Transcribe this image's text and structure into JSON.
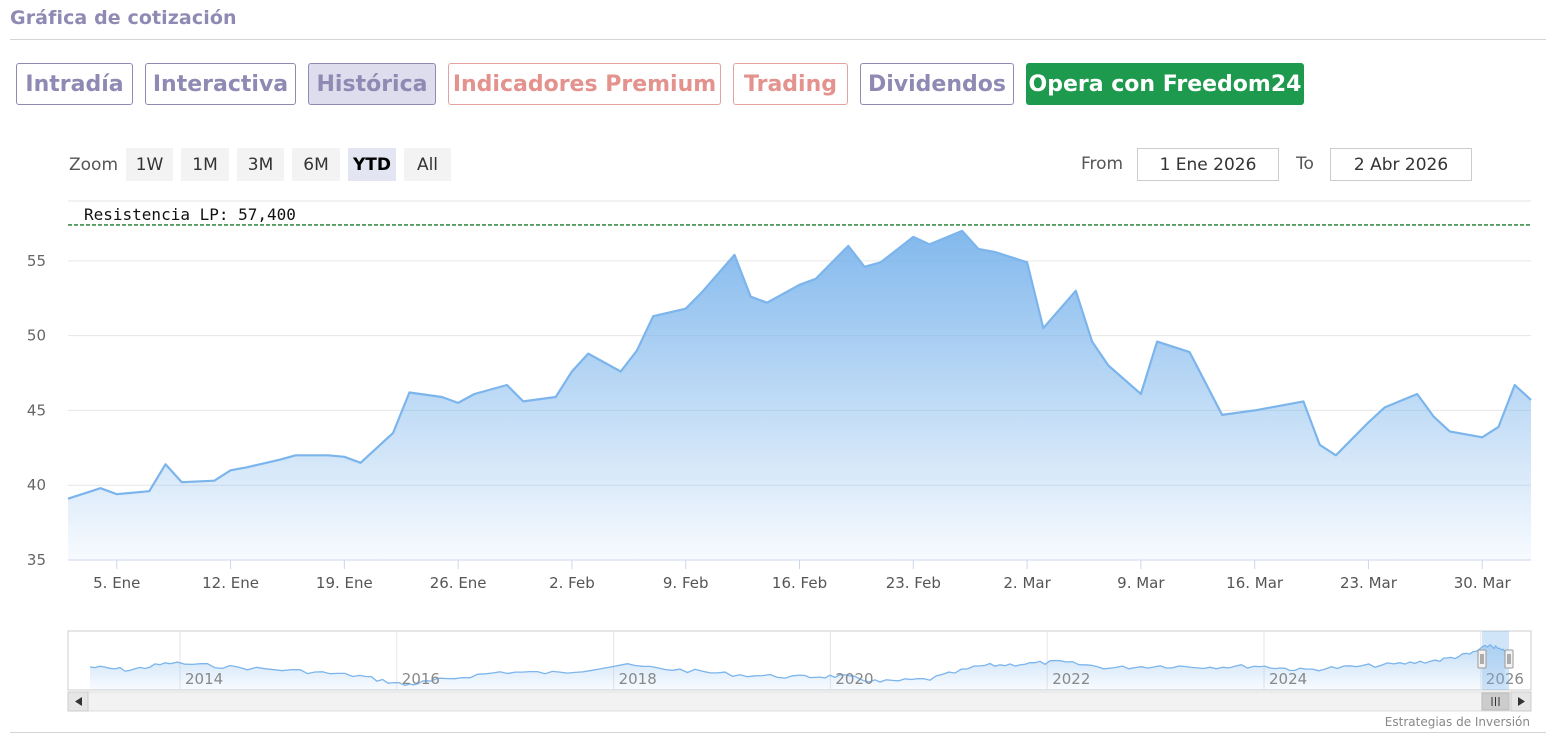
{
  "page": {
    "title": "Gráfica de cotización"
  },
  "tabs": [
    {
      "label": "Intradía"
    },
    {
      "label": "Interactiva"
    },
    {
      "label": "Histórica"
    },
    {
      "label": "Indicadores Premium"
    },
    {
      "label": "Trading"
    },
    {
      "label": "Dividendos"
    },
    {
      "label": "Opera con Freedom24"
    }
  ],
  "toolbar": {
    "zoom_label": "Zoom",
    "zoom_buttons": [
      "1W",
      "1M",
      "3M",
      "6M",
      "YTD",
      "All"
    ],
    "zoom_selected": "YTD",
    "from_label": "From",
    "from_value": "1 Ene 2026",
    "to_label": "To",
    "to_value": "2 Abr 2026"
  },
  "colors": {
    "brand": "#8e8ab3",
    "premium": "#e3928d",
    "cta": "#1e9a4e",
    "series_line": "#7cb5ec",
    "resistance_line": "#1b7a2b"
  },
  "chart_data": {
    "type": "area",
    "title": "",
    "xlabel": "",
    "ylabel": "",
    "ylim": [
      35,
      59
    ],
    "yticks": [
      35,
      40,
      45,
      50,
      55
    ],
    "xlim": [
      "2026-01-02",
      "2026-04-02"
    ],
    "x_ticks": [
      {
        "date": "2026-01-05",
        "label": "5. Ene"
      },
      {
        "date": "2026-01-12",
        "label": "12. Ene"
      },
      {
        "date": "2026-01-19",
        "label": "19. Ene"
      },
      {
        "date": "2026-01-26",
        "label": "26. Ene"
      },
      {
        "date": "2026-02-02",
        "label": "2. Feb"
      },
      {
        "date": "2026-02-09",
        "label": "9. Feb"
      },
      {
        "date": "2026-02-16",
        "label": "16. Feb"
      },
      {
        "date": "2026-02-23",
        "label": "23. Feb"
      },
      {
        "date": "2026-03-02",
        "label": "2. Mar"
      },
      {
        "date": "2026-03-09",
        "label": "9. Mar"
      },
      {
        "date": "2026-03-16",
        "label": "16. Mar"
      },
      {
        "date": "2026-03-23",
        "label": "23. Mar"
      },
      {
        "date": "2026-03-30",
        "label": "30. Mar"
      }
    ],
    "grid": true,
    "legend": "none",
    "series": [
      {
        "x": [
          "2026-01-02",
          "2026-01-04",
          "2026-01-05",
          "2026-01-07",
          "2026-01-08",
          "2026-01-09",
          "2026-01-11",
          "2026-01-12",
          "2026-01-13",
          "2026-01-15",
          "2026-01-16",
          "2026-01-18",
          "2026-01-19",
          "2026-01-20",
          "2026-01-22",
          "2026-01-23",
          "2026-01-25",
          "2026-01-26",
          "2026-01-27",
          "2026-01-29",
          "2026-01-30",
          "2026-02-01",
          "2026-02-02",
          "2026-02-03",
          "2026-02-05",
          "2026-02-06",
          "2026-02-07",
          "2026-02-09",
          "2026-02-10",
          "2026-02-12",
          "2026-02-13",
          "2026-02-14",
          "2026-02-16",
          "2026-02-17",
          "2026-02-19",
          "2026-02-20",
          "2026-02-21",
          "2026-02-23",
          "2026-02-24",
          "2026-02-26",
          "2026-02-27",
          "2026-02-28",
          "2026-03-02",
          "2026-03-03",
          "2026-03-05",
          "2026-03-06",
          "2026-03-07",
          "2026-03-09",
          "2026-03-10",
          "2026-03-12",
          "2026-03-13",
          "2026-03-14",
          "2026-03-16",
          "2026-03-17",
          "2026-03-19",
          "2026-03-20",
          "2026-03-21",
          "2026-03-23",
          "2026-03-24",
          "2026-03-26",
          "2026-03-27",
          "2026-03-28",
          "2026-03-30",
          "2026-03-31",
          "2026-04-01",
          "2026-04-02"
        ],
        "values": [
          39.1,
          39.8,
          39.4,
          39.6,
          41.4,
          40.2,
          40.3,
          41.0,
          41.2,
          41.7,
          42.0,
          42.0,
          41.9,
          41.5,
          43.5,
          46.2,
          45.9,
          45.5,
          46.1,
          46.7,
          45.6,
          45.9,
          47.6,
          48.8,
          47.6,
          49.0,
          51.3,
          51.8,
          52.9,
          55.4,
          52.6,
          52.2,
          53.4,
          53.8,
          56.0,
          54.6,
          54.9,
          56.6,
          56.1,
          57.0,
          55.8,
          55.6,
          54.9,
          50.5,
          53.0,
          49.6,
          48.0,
          46.1,
          49.6,
          48.9,
          46.8,
          44.7,
          45.0,
          45.2,
          45.6,
          42.7,
          42.0,
          44.2,
          45.2,
          46.1,
          44.6,
          43.6,
          43.2,
          43.9,
          46.7,
          45.7
        ]
      }
    ],
    "annotations": [
      {
        "type": "horizontal_line",
        "value": 57.4,
        "label": "Resistencia LP: 57,400"
      }
    ],
    "navigator": {
      "x_labels": [
        "2014",
        "2016",
        "2018",
        "2020",
        "2022",
        "2024",
        "2026"
      ]
    }
  },
  "footer": {
    "credit": "Estrategias de Inversión"
  }
}
